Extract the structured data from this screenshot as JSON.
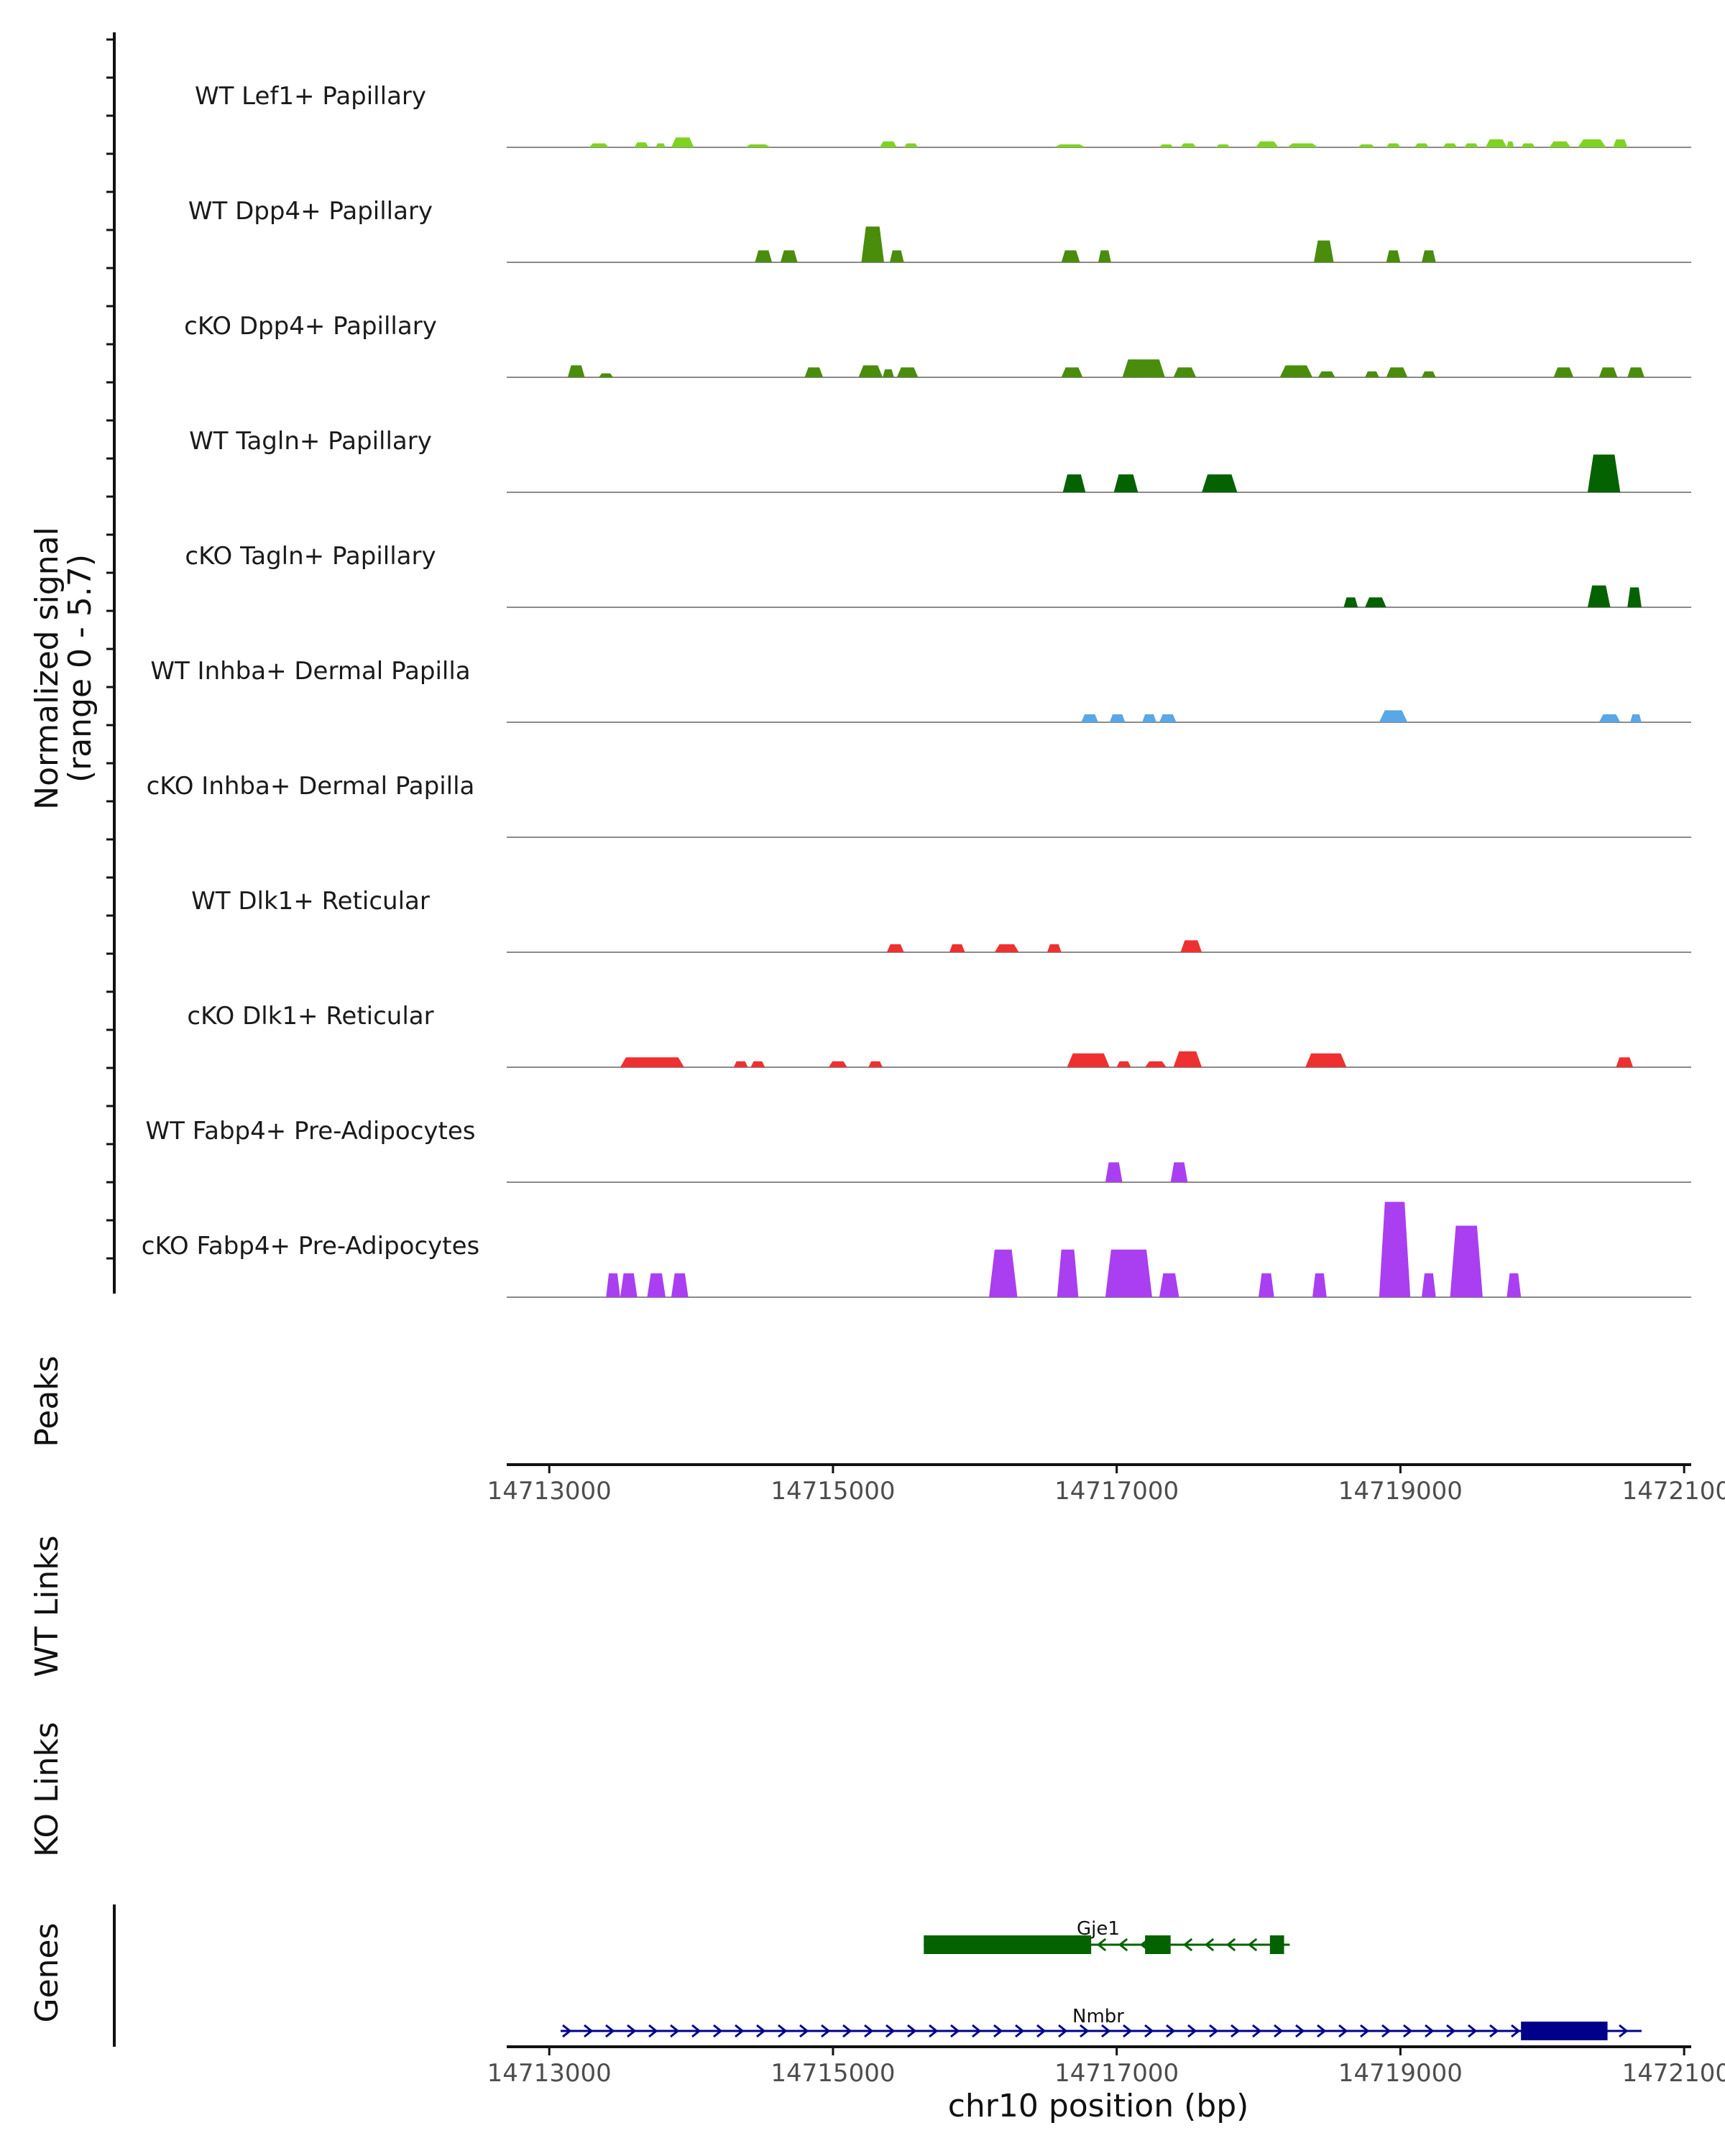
{
  "chart_data": {
    "type": "area",
    "title": "",
    "ylabel_lines": [
      "Normalized signal",
      "(range 0 - 5.7)"
    ],
    "xlabel": "chr10 position (bp)",
    "xlim": [
      14712700,
      14721050
    ],
    "ylim": [
      0,
      5.7
    ],
    "x_ticks": [
      14713000,
      14715000,
      14717000,
      14719000,
      14721000
    ],
    "x_tick_labels": [
      "14713000",
      "14715000",
      "14717000",
      "14719000",
      "14721000"
    ],
    "peaks_label": "Peaks",
    "wt_links_label": "WT Links",
    "ko_links_label": "KO Links",
    "genes_label": "Genes",
    "tracks": [
      {
        "name": "WT Lef1+ Papillary",
        "color": "#7ed321",
        "peaks": [
          [
            14713280,
            14713420,
            0.2
          ],
          [
            14713600,
            14713700,
            0.25
          ],
          [
            14713750,
            14713820,
            0.2
          ],
          [
            14713860,
            14714020,
            0.5
          ],
          [
            14714380,
            14714560,
            0.15
          ],
          [
            14715330,
            14715450,
            0.3
          ],
          [
            14715500,
            14715600,
            0.2
          ],
          [
            14716560,
            14716780,
            0.15
          ],
          [
            14717300,
            14717400,
            0.15
          ],
          [
            14717450,
            14717560,
            0.2
          ],
          [
            14717700,
            14717800,
            0.15
          ],
          [
            14717980,
            14718140,
            0.3
          ],
          [
            14718200,
            14718420,
            0.2
          ],
          [
            14718700,
            14718820,
            0.15
          ],
          [
            14718900,
            14719000,
            0.2
          ],
          [
            14719100,
            14719200,
            0.2
          ],
          [
            14719300,
            14719400,
            0.2
          ],
          [
            14719450,
            14719550,
            0.2
          ],
          [
            14719600,
            14719750,
            0.4
          ],
          [
            14719750,
            14719800,
            0.3
          ],
          [
            14719850,
            14719950,
            0.2
          ],
          [
            14720050,
            14720200,
            0.3
          ],
          [
            14720250,
            14720450,
            0.4
          ],
          [
            14720500,
            14720600,
            0.4
          ]
        ]
      },
      {
        "name": "WT Dpp4+ Papillary",
        "color": "#4a8c0b",
        "peaks": [
          [
            14714450,
            14714570,
            0.6
          ],
          [
            14714630,
            14714750,
            0.6
          ],
          [
            14715200,
            14715360,
            1.8
          ],
          [
            14715400,
            14715500,
            0.6
          ],
          [
            14716610,
            14716740,
            0.6
          ],
          [
            14716870,
            14716960,
            0.6
          ],
          [
            14718390,
            14718530,
            1.1
          ],
          [
            14718900,
            14719000,
            0.6
          ],
          [
            14719150,
            14719250,
            0.6
          ]
        ]
      },
      {
        "name": "cKO Dpp4+ Papillary",
        "color": "#4a8c0b",
        "peaks": [
          [
            14713130,
            14713250,
            0.6
          ],
          [
            14713350,
            14713450,
            0.2
          ],
          [
            14714800,
            14714930,
            0.5
          ],
          [
            14715180,
            14715350,
            0.6
          ],
          [
            14715350,
            14715430,
            0.4
          ],
          [
            14715450,
            14715600,
            0.5
          ],
          [
            14716610,
            14716760,
            0.5
          ],
          [
            14717040,
            14717340,
            0.9
          ],
          [
            14717400,
            14717560,
            0.5
          ],
          [
            14718150,
            14718380,
            0.6
          ],
          [
            14718420,
            14718540,
            0.3
          ],
          [
            14718750,
            14718850,
            0.3
          ],
          [
            14718900,
            14719050,
            0.5
          ],
          [
            14719150,
            14719250,
            0.3
          ],
          [
            14720080,
            14720220,
            0.5
          ],
          [
            14720400,
            14720530,
            0.5
          ],
          [
            14720600,
            14720720,
            0.5
          ]
        ]
      },
      {
        "name": "WT Tagln+ Papillary",
        "color": "#046200",
        "peaks": [
          [
            14716620,
            14716780,
            0.9
          ],
          [
            14716980,
            14717150,
            0.9
          ],
          [
            14717600,
            14717850,
            0.9
          ],
          [
            14720320,
            14720550,
            1.9
          ]
        ]
      },
      {
        "name": "cKO Tagln+ Papillary",
        "color": "#046200",
        "peaks": [
          [
            14718600,
            14718700,
            0.5
          ],
          [
            14718750,
            14718900,
            0.5
          ],
          [
            14720320,
            14720480,
            1.1
          ],
          [
            14720600,
            14720700,
            1.0
          ]
        ]
      },
      {
        "name": "WT Inhba+ Dermal Papilla",
        "color": "#5aa6e6",
        "peaks": [
          [
            14716750,
            14716870,
            0.4
          ],
          [
            14716950,
            14717060,
            0.4
          ],
          [
            14717180,
            14717280,
            0.4
          ],
          [
            14717300,
            14717420,
            0.4
          ],
          [
            14718850,
            14719050,
            0.6
          ],
          [
            14720400,
            14720550,
            0.4
          ],
          [
            14720620,
            14720700,
            0.4
          ]
        ]
      },
      {
        "name": "cKO Inhba+ Dermal Papilla",
        "color": "#5aa6e6",
        "peaks": []
      },
      {
        "name": "WT Dlk1+ Reticular",
        "color": "#ef3030",
        "peaks": [
          [
            14715380,
            14715500,
            0.4
          ],
          [
            14715820,
            14715930,
            0.4
          ],
          [
            14716140,
            14716310,
            0.4
          ],
          [
            14716510,
            14716610,
            0.4
          ],
          [
            14717450,
            14717600,
            0.6
          ]
        ]
      },
      {
        "name": "cKO Dlk1+ Reticular",
        "color": "#ef3030",
        "peaks": [
          [
            14713500,
            14713950,
            0.5
          ],
          [
            14714300,
            14714400,
            0.3
          ],
          [
            14714420,
            14714520,
            0.3
          ],
          [
            14714970,
            14715100,
            0.3
          ],
          [
            14715250,
            14715350,
            0.3
          ],
          [
            14716650,
            14716950,
            0.7
          ],
          [
            14717000,
            14717100,
            0.3
          ],
          [
            14717200,
            14717350,
            0.3
          ],
          [
            14717400,
            14717600,
            0.8
          ],
          [
            14718330,
            14718620,
            0.7
          ],
          [
            14720520,
            14720640,
            0.5
          ]
        ]
      },
      {
        "name": "WT Fabp4+ Pre-Adipocytes",
        "color": "#a93ff0",
        "peaks": [
          [
            14716920,
            14717040,
            1.0
          ],
          [
            14717380,
            14717500,
            1.0
          ]
        ]
      },
      {
        "name": "cKO Fabp4+ Pre-Adipocytes",
        "color": "#a93ff0",
        "peaks": [
          [
            14713400,
            14713500,
            1.2
          ],
          [
            14713500,
            14713620,
            1.2
          ],
          [
            14713690,
            14713820,
            1.2
          ],
          [
            14713860,
            14713980,
            1.2
          ],
          [
            14716100,
            14716300,
            2.4
          ],
          [
            14716580,
            14716730,
            2.4
          ],
          [
            14716920,
            14717250,
            2.4
          ],
          [
            14717300,
            14717440,
            1.2
          ],
          [
            14718000,
            14718110,
            1.2
          ],
          [
            14718380,
            14718480,
            1.2
          ],
          [
            14718850,
            14719070,
            4.8
          ],
          [
            14719150,
            14719250,
            1.2
          ],
          [
            14719350,
            14719580,
            3.6
          ],
          [
            14719750,
            14719850,
            1.2
          ]
        ]
      }
    ],
    "genes": [
      {
        "name": "Gje1",
        "strand": "-",
        "color": "#046200",
        "start": 14715640,
        "end": 14718220,
        "exons": [
          [
            14715640,
            14716820
          ],
          [
            14717200,
            14717380
          ],
          [
            14718080,
            14718180
          ]
        ]
      },
      {
        "name": "Nmbr",
        "strand": "+",
        "color": "#00008b",
        "start": 14713080,
        "end": 14720700,
        "exons": [
          [
            14719850,
            14720460
          ]
        ]
      }
    ]
  }
}
